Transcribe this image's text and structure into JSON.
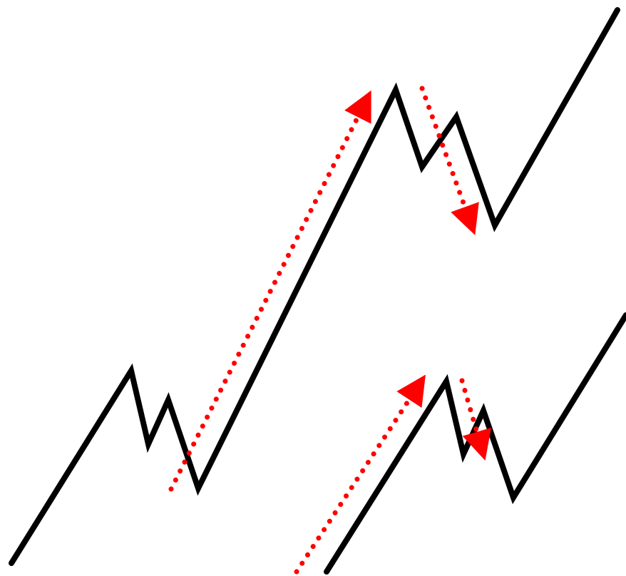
{
  "colors": {
    "background": "#ffffff",
    "price_line": "#000000",
    "arrow": "#ff0000"
  },
  "diagram": {
    "upper_pattern": {
      "price_line": "zigzag-up",
      "arrows": [
        "impulse-up-arrow",
        "retracement-down-arrow"
      ]
    },
    "lower_pattern": {
      "price_line": "zigzag-up",
      "arrows": [
        "impulse-up-arrow",
        "retracement-down-arrow"
      ]
    }
  }
}
